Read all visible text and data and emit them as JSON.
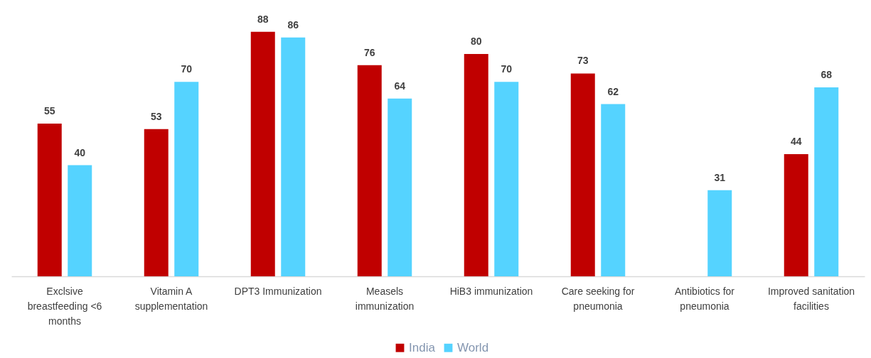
{
  "chart_data": {
    "type": "bar",
    "categories": [
      "Exclsive breastfeeding <6 months",
      "Vitamin A supplementation",
      "DPT3 Immunization",
      "Measels immunization",
      "HiB3 immunization",
      "Care seeking for pneumonia",
      "Antibiotics for pneumonia",
      "Improved sanitation facilities"
    ],
    "series": [
      {
        "name": "India",
        "color": "#c00000",
        "values": [
          55,
          53,
          88,
          76,
          80,
          73,
          null,
          44
        ]
      },
      {
        "name": "World",
        "color": "#55d3ff",
        "values": [
          40,
          70,
          86,
          64,
          70,
          62,
          31,
          68
        ]
      }
    ],
    "data_labels": true,
    "legend": "bottom",
    "tick_labels": "x"
  }
}
